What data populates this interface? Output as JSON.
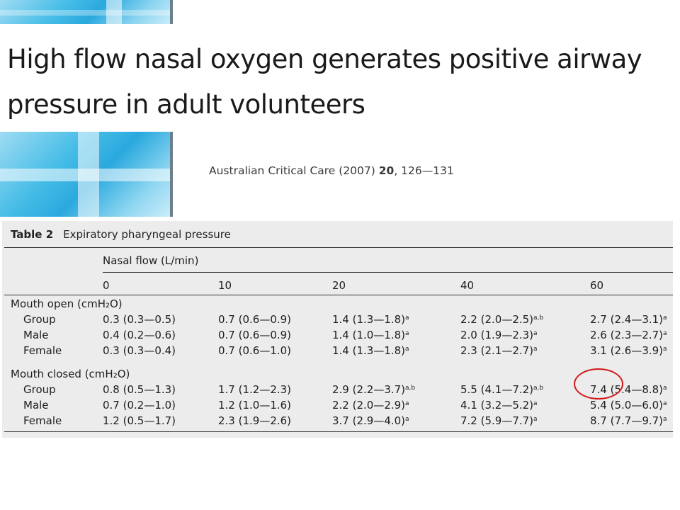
{
  "paper": {
    "title_line1": "High flow nasal oxygen generates positive airway",
    "title_line2": "pressure in adult volunteers",
    "citation_journal": "Australian Critical Care (2007)",
    "citation_volume": "20",
    "citation_pages": ", 126—131"
  },
  "table": {
    "label": "Table 2",
    "caption": "Expiratory pharyngeal pressure",
    "flow_header": "Nasal flow (L/min)",
    "flows": [
      "0",
      "10",
      "20",
      "40",
      "60"
    ],
    "groups": [
      {
        "name": "Mouth open (cmH₂O)",
        "rows": [
          {
            "label": "Group",
            "cells": [
              [
                "0.3 (0.3—0.5)",
                ""
              ],
              [
                "0.7 (0.6—0.9)",
                ""
              ],
              [
                "1.4 (1.3—1.8)",
                "a"
              ],
              [
                "2.2 (2.0—2.5)",
                "a,b"
              ],
              [
                "2.7 (2.4—3.1)",
                "a"
              ]
            ]
          },
          {
            "label": "Male",
            "cells": [
              [
                "0.4 (0.2—0.6)",
                ""
              ],
              [
                "0.7 (0.6—0.9)",
                ""
              ],
              [
                "1.4 (1.0—1.8)",
                "a"
              ],
              [
                "2.0 (1.9—2.3)",
                "a"
              ],
              [
                "2.6 (2.3—2.7)",
                "a"
              ]
            ]
          },
          {
            "label": "Female",
            "cells": [
              [
                "0.3 (0.3—0.4)",
                ""
              ],
              [
                "0.7 (0.6—1.0)",
                ""
              ],
              [
                "1.4 (1.3—1.8)",
                "a"
              ],
              [
                "2.3 (2.1—2.7)",
                "a"
              ],
              [
                "3.1 (2.6—3.9)",
                "a"
              ]
            ]
          }
        ]
      },
      {
        "name": "Mouth closed (cmH₂O)",
        "rows": [
          {
            "label": "Group",
            "cells": [
              [
                "0.8 (0.5—1.3)",
                ""
              ],
              [
                "1.7 (1.2—2.3)",
                ""
              ],
              [
                "2.9 (2.2—3.7)",
                "a,b"
              ],
              [
                "5.5 (4.1—7.2)",
                "a,b"
              ],
              [
                "7.4 (5.4—8.8)",
                "a"
              ]
            ]
          },
          {
            "label": "Male",
            "cells": [
              [
                "0.7 (0.2—1.0)",
                ""
              ],
              [
                "1.2 (1.0—1.6)",
                ""
              ],
              [
                "2.2 (2.0—2.9)",
                "a"
              ],
              [
                "4.1 (3.2—5.2)",
                "a"
              ],
              [
                "5.4 (5.0—6.0)",
                "a"
              ]
            ]
          },
          {
            "label": "Female",
            "cells": [
              [
                "1.2 (0.5—1.7)",
                ""
              ],
              [
                "2.3 (1.9—2.6)",
                ""
              ],
              [
                "3.7 (2.9—4.0)",
                "a"
              ],
              [
                "7.2 (5.9—7.7)",
                "a"
              ],
              [
                "8.7 (7.7—9.7)",
                "a"
              ]
            ]
          }
        ]
      }
    ]
  },
  "annotation": {
    "color": "#d11a1a"
  }
}
